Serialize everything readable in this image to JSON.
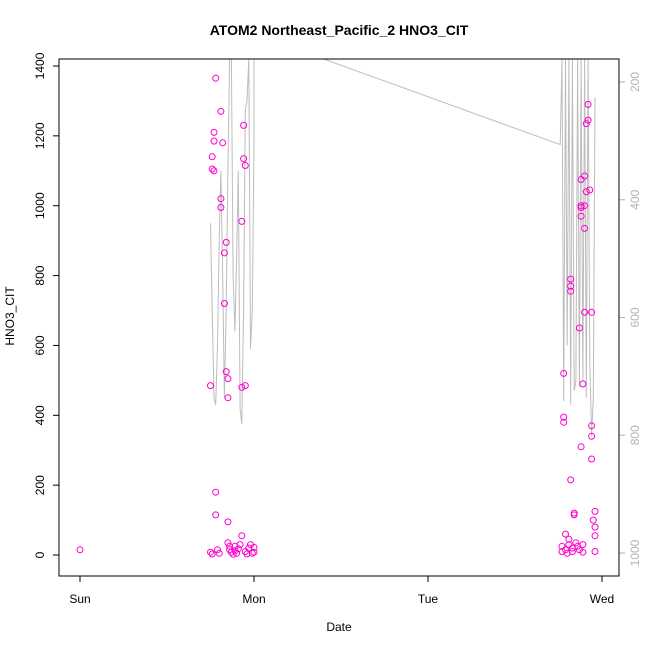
{
  "chart_data": {
    "type": "scatter",
    "title": "ATOM2 Northeast_Pacific_2 HNO3_CIT",
    "xlabel": "Date",
    "ylabel": "HNO3_CIT",
    "x_ticks": [
      "Sun",
      "Mon",
      "Tue",
      "Wed"
    ],
    "ylim": [
      -60,
      1420
    ],
    "y_ticks": [
      0,
      200,
      400,
      600,
      800,
      1000,
      1200,
      1400
    ],
    "right_axis_ticks": [
      200,
      400,
      600,
      800,
      1000
    ],
    "right_axis_note": "pressure-like altitude axis, inverted (200 at top, 1000 at bottom)",
    "colors": {
      "points": "#ff00cc",
      "profile_line": "#bdbdbd",
      "right_axis": "#b3b3b3"
    },
    "series": [
      {
        "values": [
          {
            "x": 0.0,
            "y": 15
          },
          {
            "x": 0.75,
            "y": 8
          },
          {
            "x": 0.75,
            "y": 485
          },
          {
            "x": 0.76,
            "y": 3
          },
          {
            "x": 0.76,
            "y": 1105
          },
          {
            "x": 0.76,
            "y": 1140
          },
          {
            "x": 0.77,
            "y": 1210
          },
          {
            "x": 0.77,
            "y": 1185
          },
          {
            "x": 0.77,
            "y": 1100
          },
          {
            "x": 0.78,
            "y": 1365
          },
          {
            "x": 0.78,
            "y": 180
          },
          {
            "x": 0.78,
            "y": 115
          },
          {
            "x": 0.79,
            "y": 15
          },
          {
            "x": 0.8,
            "y": 5
          },
          {
            "x": 0.81,
            "y": 995
          },
          {
            "x": 0.81,
            "y": 1020
          },
          {
            "x": 0.81,
            "y": 1270
          },
          {
            "x": 0.82,
            "y": 1180
          },
          {
            "x": 0.83,
            "y": 720
          },
          {
            "x": 0.83,
            "y": 865
          },
          {
            "x": 0.84,
            "y": 895
          },
          {
            "x": 0.84,
            "y": 525
          },
          {
            "x": 0.85,
            "y": 505
          },
          {
            "x": 0.85,
            "y": 450
          },
          {
            "x": 0.85,
            "y": 95
          },
          {
            "x": 0.85,
            "y": 35
          },
          {
            "x": 0.86,
            "y": 25
          },
          {
            "x": 0.86,
            "y": 15
          },
          {
            "x": 0.87,
            "y": 8
          },
          {
            "x": 0.88,
            "y": 2
          },
          {
            "x": 0.89,
            "y": 12
          },
          {
            "x": 0.89,
            "y": 25
          },
          {
            "x": 0.9,
            "y": 5
          },
          {
            "x": 0.91,
            "y": 18
          },
          {
            "x": 0.92,
            "y": 30
          },
          {
            "x": 0.93,
            "y": 55
          },
          {
            "x": 0.93,
            "y": 955
          },
          {
            "x": 0.93,
            "y": 480
          },
          {
            "x": 0.94,
            "y": 1135
          },
          {
            "x": 0.94,
            "y": 1230
          },
          {
            "x": 0.95,
            "y": 1115
          },
          {
            "x": 0.95,
            "y": 485
          },
          {
            "x": 0.95,
            "y": 10
          },
          {
            "x": 0.96,
            "y": 3
          },
          {
            "x": 0.97,
            "y": 20
          },
          {
            "x": 0.98,
            "y": 30
          },
          {
            "x": 0.99,
            "y": 5
          },
          {
            "x": 1.0,
            "y": 8
          },
          {
            "x": 1.0,
            "y": 22
          },
          {
            "x": 2.77,
            "y": 25
          },
          {
            "x": 2.77,
            "y": 10
          },
          {
            "x": 2.78,
            "y": 520
          },
          {
            "x": 2.78,
            "y": 395
          },
          {
            "x": 2.78,
            "y": 380
          },
          {
            "x": 2.79,
            "y": 60
          },
          {
            "x": 2.79,
            "y": 15
          },
          {
            "x": 2.8,
            "y": 5
          },
          {
            "x": 2.81,
            "y": 30
          },
          {
            "x": 2.81,
            "y": 45
          },
          {
            "x": 2.82,
            "y": 790
          },
          {
            "x": 2.82,
            "y": 770
          },
          {
            "x": 2.82,
            "y": 755
          },
          {
            "x": 2.82,
            "y": 215
          },
          {
            "x": 2.83,
            "y": 20
          },
          {
            "x": 2.83,
            "y": 10
          },
          {
            "x": 2.84,
            "y": 120
          },
          {
            "x": 2.84,
            "y": 115
          },
          {
            "x": 2.85,
            "y": 35
          },
          {
            "x": 2.86,
            "y": 25
          },
          {
            "x": 2.87,
            "y": 650
          },
          {
            "x": 2.87,
            "y": 15
          },
          {
            "x": 2.88,
            "y": 1000
          },
          {
            "x": 2.88,
            "y": 995
          },
          {
            "x": 2.88,
            "y": 970
          },
          {
            "x": 2.88,
            "y": 310
          },
          {
            "x": 2.88,
            "y": 1075
          },
          {
            "x": 2.89,
            "y": 8
          },
          {
            "x": 2.89,
            "y": 30
          },
          {
            "x": 2.89,
            "y": 490
          },
          {
            "x": 2.9,
            "y": 935
          },
          {
            "x": 2.9,
            "y": 1085
          },
          {
            "x": 2.9,
            "y": 1000
          },
          {
            "x": 2.9,
            "y": 695
          },
          {
            "x": 2.91,
            "y": 1040
          },
          {
            "x": 2.91,
            "y": 1235
          },
          {
            "x": 2.92,
            "y": 1245
          },
          {
            "x": 2.92,
            "y": 1290
          },
          {
            "x": 2.93,
            "y": 1045
          },
          {
            "x": 2.94,
            "y": 695
          },
          {
            "x": 2.94,
            "y": 370
          },
          {
            "x": 2.94,
            "y": 340
          },
          {
            "x": 2.94,
            "y": 275
          },
          {
            "x": 2.95,
            "y": 100
          },
          {
            "x": 2.96,
            "y": 125
          },
          {
            "x": 2.96,
            "y": 80
          },
          {
            "x": 2.96,
            "y": 55
          },
          {
            "x": 2.96,
            "y": 10
          }
        ]
      }
    ],
    "profile_line": [
      [
        0.75,
        950
      ],
      [
        0.76,
        700
      ],
      [
        0.77,
        450
      ],
      [
        0.78,
        430
      ],
      [
        0.79,
        600
      ],
      [
        0.8,
        900
      ],
      [
        0.81,
        1100
      ],
      [
        0.82,
        800
      ],
      [
        0.83,
        450
      ],
      [
        0.84,
        700
      ],
      [
        0.85,
        1100
      ],
      [
        0.86,
        1420
      ],
      [
        0.87,
        1420
      ],
      [
        0.88,
        800
      ],
      [
        0.89,
        640
      ],
      [
        0.9,
        850
      ],
      [
        0.91,
        1100
      ],
      [
        0.92,
        420
      ],
      [
        0.93,
        375
      ],
      [
        0.94,
        700
      ],
      [
        0.95,
        1275
      ],
      [
        0.96,
        1300
      ],
      [
        0.97,
        1420
      ],
      [
        0.98,
        590
      ],
      [
        0.99,
        700
      ],
      [
        1.0,
        1180
      ],
      [
        1.0,
        1420
      ],
      [
        1.4,
        1420
      ],
      [
        2.76,
        1175
      ],
      [
        2.77,
        1420
      ],
      [
        2.78,
        440
      ],
      [
        2.79,
        1420
      ],
      [
        2.8,
        600
      ],
      [
        2.81,
        1420
      ],
      [
        2.82,
        430
      ],
      [
        2.83,
        1420
      ],
      [
        2.84,
        470
      ],
      [
        2.85,
        500
      ],
      [
        2.86,
        1420
      ],
      [
        2.87,
        480
      ],
      [
        2.88,
        1420
      ],
      [
        2.89,
        500
      ],
      [
        2.9,
        1420
      ],
      [
        2.91,
        450
      ],
      [
        2.92,
        1420
      ],
      [
        2.93,
        550
      ],
      [
        2.94,
        340
      ],
      [
        2.95,
        450
      ],
      [
        2.96,
        1310
      ]
    ]
  }
}
